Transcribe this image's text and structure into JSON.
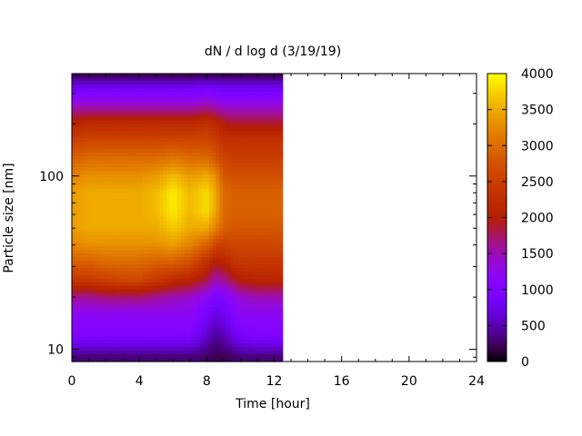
{
  "chart_data": {
    "type": "heatmap",
    "title": "dN / d log d (3/19/19)",
    "xlabel": "Time [hour]",
    "ylabel": "Particle size [nm]",
    "x_range": [
      0,
      24
    ],
    "x_ticks": [
      0,
      4,
      8,
      12,
      16,
      20,
      24
    ],
    "y_scale": "log",
    "y_range": [
      8.5,
      390
    ],
    "y_ticks": [
      10,
      100
    ],
    "data_extent_x": [
      0,
      12.5
    ],
    "data_extent_y": [
      8.5,
      390
    ],
    "colorbar": {
      "range": [
        0,
        4000
      ],
      "ticks": [
        0,
        500,
        1000,
        1500,
        2000,
        2500,
        3000,
        3500,
        4000
      ],
      "palette": "gnuplot (black-purple-red-orange-yellow)"
    },
    "time_hours": [
      0,
      1,
      2,
      3,
      4,
      5,
      6,
      7,
      8,
      8.5,
      9,
      9.5,
      10,
      11,
      12,
      12.5
    ],
    "size_nm": [
      9,
      12,
      16,
      20,
      25,
      32,
      40,
      50,
      63,
      80,
      100,
      126,
      160,
      200,
      250,
      320,
      390
    ],
    "values": [
      [
        300,
        300,
        300,
        300,
        300,
        300,
        300,
        300,
        250,
        200,
        200,
        250,
        300,
        300,
        300,
        300
      ],
      [
        1000,
        1000,
        1000,
        1000,
        1000,
        1000,
        1000,
        1000,
        600,
        400,
        500,
        700,
        900,
        1000,
        1000,
        1000
      ],
      [
        1200,
        1200,
        1200,
        1200,
        1200,
        1200,
        1200,
        1200,
        900,
        700,
        800,
        1000,
        1200,
        1200,
        1200,
        1200
      ],
      [
        1600,
        1600,
        1700,
        1700,
        1700,
        1600,
        1500,
        1400,
        1200,
        1000,
        1000,
        1200,
        1400,
        1500,
        1500,
        1500
      ],
      [
        2400,
        2400,
        2500,
        2600,
        2600,
        2400,
        2200,
        2100,
        1800,
        1500,
        1600,
        1800,
        2000,
        2100,
        2100,
        2100
      ],
      [
        2900,
        2900,
        3000,
        3000,
        3000,
        2900,
        2900,
        2700,
        2300,
        2000,
        2100,
        2300,
        2400,
        2400,
        2400,
        2400
      ],
      [
        3200,
        3300,
        3300,
        3300,
        3300,
        3300,
        3400,
        3200,
        2900,
        2600,
        2500,
        2600,
        2600,
        2600,
        2600,
        2600
      ],
      [
        3400,
        3500,
        3500,
        3500,
        3500,
        3500,
        3700,
        3500,
        3500,
        3200,
        2900,
        2800,
        2800,
        2800,
        2800,
        2800
      ],
      [
        3400,
        3500,
        3500,
        3500,
        3500,
        3600,
        3900,
        3600,
        3800,
        3500,
        3000,
        2900,
        2900,
        2900,
        2900,
        2900
      ],
      [
        3400,
        3500,
        3500,
        3500,
        3500,
        3600,
        3900,
        3600,
        3800,
        3500,
        3000,
        2900,
        2900,
        2900,
        2900,
        2900
      ],
      [
        3200,
        3300,
        3300,
        3300,
        3300,
        3400,
        3600,
        3400,
        3500,
        3300,
        2800,
        2700,
        2700,
        2700,
        2700,
        2700
      ],
      [
        2900,
        3000,
        3000,
        3000,
        3000,
        3000,
        3100,
        3000,
        3000,
        2800,
        2600,
        2500,
        2500,
        2500,
        2500,
        2500
      ],
      [
        2500,
        2600,
        2600,
        2600,
        2600,
        2600,
        2600,
        2600,
        2600,
        2500,
        2300,
        2300,
        2300,
        2300,
        2300,
        2300
      ],
      [
        2100,
        2200,
        2200,
        2200,
        2200,
        2200,
        2200,
        2200,
        2300,
        2200,
        2000,
        1900,
        1900,
        1900,
        1900,
        1900
      ],
      [
        1500,
        1500,
        1500,
        1500,
        1500,
        1500,
        1500,
        1500,
        1600,
        1500,
        1400,
        1400,
        1400,
        1400,
        1400,
        1400
      ],
      [
        800,
        800,
        800,
        800,
        800,
        800,
        800,
        800,
        900,
        850,
        800,
        800,
        800,
        800,
        800,
        800
      ],
      [
        150,
        150,
        150,
        150,
        150,
        150,
        150,
        150,
        150,
        150,
        150,
        150,
        150,
        150,
        150,
        150
      ]
    ]
  }
}
